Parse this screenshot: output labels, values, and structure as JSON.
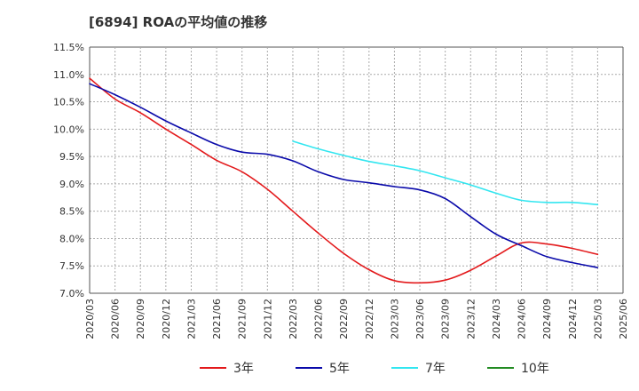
{
  "chart_data": {
    "type": "line",
    "title": "[6894]  ROAの平均値の推移",
    "x": [
      "2020/03",
      "2020/06",
      "2020/09",
      "2020/12",
      "2021/03",
      "2021/06",
      "2021/09",
      "2021/12",
      "2022/03",
      "2022/06",
      "2022/09",
      "2022/12",
      "2023/03",
      "2023/06",
      "2023/09",
      "2023/12",
      "2024/03",
      "2024/06",
      "2024/09",
      "2024/12",
      "2025/03",
      "2025/06"
    ],
    "ylim": [
      7.0,
      11.5
    ],
    "y_ticks": [
      "11.5%",
      "11.0%",
      "10.5%",
      "10.0%",
      "9.5%",
      "9.0%",
      "8.5%",
      "8.0%",
      "7.5%",
      "7.0%"
    ],
    "y_tick_values": [
      11.5,
      11.0,
      10.5,
      10.0,
      9.5,
      9.0,
      8.5,
      8.0,
      7.5,
      7.0
    ],
    "grid": true,
    "legend_position": "bottom",
    "series": [
      {
        "name": "3年",
        "color": "#e31a1c",
        "values": [
          10.93,
          10.55,
          10.3,
          10.0,
          9.72,
          9.43,
          9.22,
          8.9,
          8.5,
          8.1,
          7.73,
          7.43,
          7.23,
          7.19,
          7.24,
          7.42,
          7.68,
          7.92,
          7.9,
          7.82,
          7.71,
          null
        ]
      },
      {
        "name": "5年",
        "color": "#0a0aaa",
        "values": [
          10.83,
          10.63,
          10.4,
          10.15,
          9.93,
          9.72,
          9.58,
          9.54,
          9.42,
          9.22,
          9.08,
          9.02,
          8.95,
          8.89,
          8.73,
          8.4,
          8.08,
          7.87,
          7.67,
          7.56,
          7.47,
          null
        ]
      },
      {
        "name": "7年",
        "color": "#33e6f0",
        "values": [
          null,
          null,
          null,
          null,
          null,
          null,
          null,
          null,
          9.78,
          9.64,
          9.52,
          9.41,
          9.33,
          9.24,
          9.11,
          8.98,
          8.83,
          8.7,
          8.66,
          8.66,
          8.62,
          null
        ]
      },
      {
        "name": "10年",
        "color": "#228b22",
        "values": [
          null,
          null,
          null,
          null,
          null,
          null,
          null,
          null,
          null,
          null,
          null,
          null,
          null,
          null,
          null,
          null,
          null,
          null,
          null,
          null,
          null,
          null
        ]
      }
    ]
  }
}
